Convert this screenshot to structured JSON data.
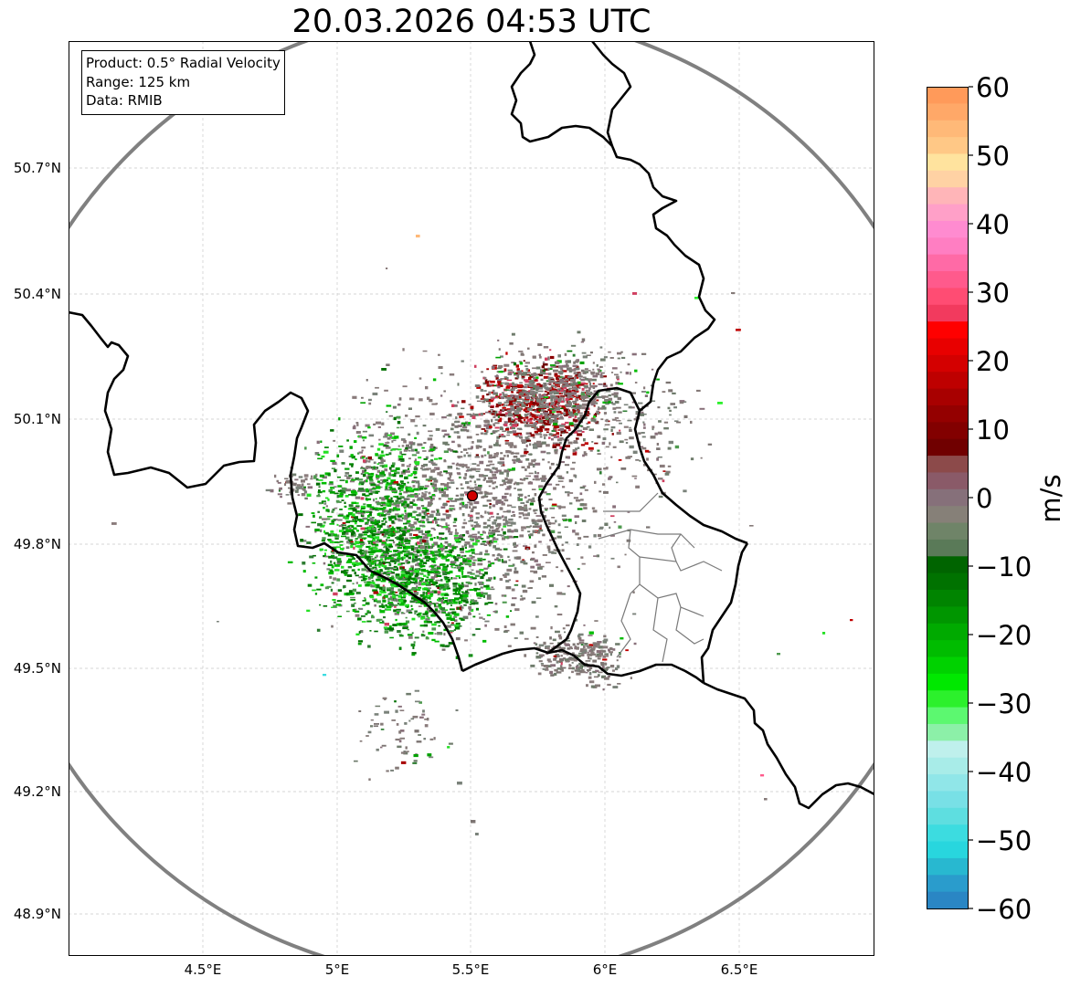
{
  "title": "20.03.2026 04:53 UTC",
  "info_box": {
    "product": "Product: 0.5° Radial Velocity",
    "range": "Range: 125 km",
    "data": "Data: RMIB"
  },
  "map": {
    "lon_ticks": [
      "4.5°E",
      "5°E",
      "5.5°E",
      "6°E",
      "6.5°E"
    ],
    "lat_ticks": [
      "50.7°N",
      "50.4°N",
      "50.1°N",
      "49.8°N",
      "49.5°N",
      "49.2°N",
      "48.9°N"
    ],
    "radar_site_color": "#d00000",
    "range_ring_color": "#808080",
    "border_color": "#000000"
  },
  "colorbar": {
    "label": "m/s",
    "ticks": [
      "60",
      "50",
      "40",
      "30",
      "20",
      "10",
      "0",
      "−10",
      "−20",
      "−30",
      "−40",
      "−50",
      "−60"
    ],
    "colors_top_to_bottom": [
      "#ff9a5a",
      "#ffa868",
      "#ffb978",
      "#ffc886",
      "#ffe39e",
      "#ffd2a4",
      "#ffb5b8",
      "#ffa0c8",
      "#ff8bd0",
      "#ff7ec2",
      "#ff6aa6",
      "#ff5a8c",
      "#ff4c73",
      "#f23a5e",
      "#ff0000",
      "#e80000",
      "#d40000",
      "#be0000",
      "#a80000",
      "#940000",
      "#820000",
      "#700000",
      "#8c4a4a",
      "#8a5a68",
      "#86707a",
      "#868078",
      "#6f8468",
      "#5a7a58",
      "#006400",
      "#007200",
      "#008400",
      "#009600",
      "#00aa00",
      "#00bc00",
      "#00d200",
      "#00e800",
      "#2cf02c",
      "#5cf870",
      "#8cf0a8",
      "#bff0ec",
      "#a8ece8",
      "#90e6e8",
      "#78e0e6",
      "#5edee0",
      "#3cdce0",
      "#28d6de",
      "#28b8d0",
      "#2a9ccc",
      "#2a86c4"
    ]
  }
}
